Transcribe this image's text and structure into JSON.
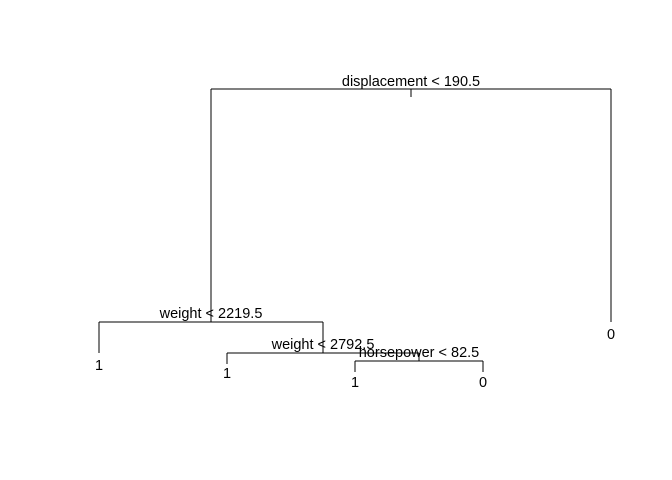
{
  "tree": {
    "root": {
      "split": "displacement < 190.5",
      "left": {
        "split": "weight < 2219.5",
        "left": {
          "leaf": "1"
        },
        "right": {
          "split": "weight < 2792.5",
          "left": {
            "leaf": "1"
          },
          "right": {
            "split": "horsepower < 82.5",
            "left": {
              "leaf": "1"
            },
            "right": {
              "leaf": "0"
            }
          }
        }
      },
      "right": {
        "leaf": "0"
      }
    }
  }
}
